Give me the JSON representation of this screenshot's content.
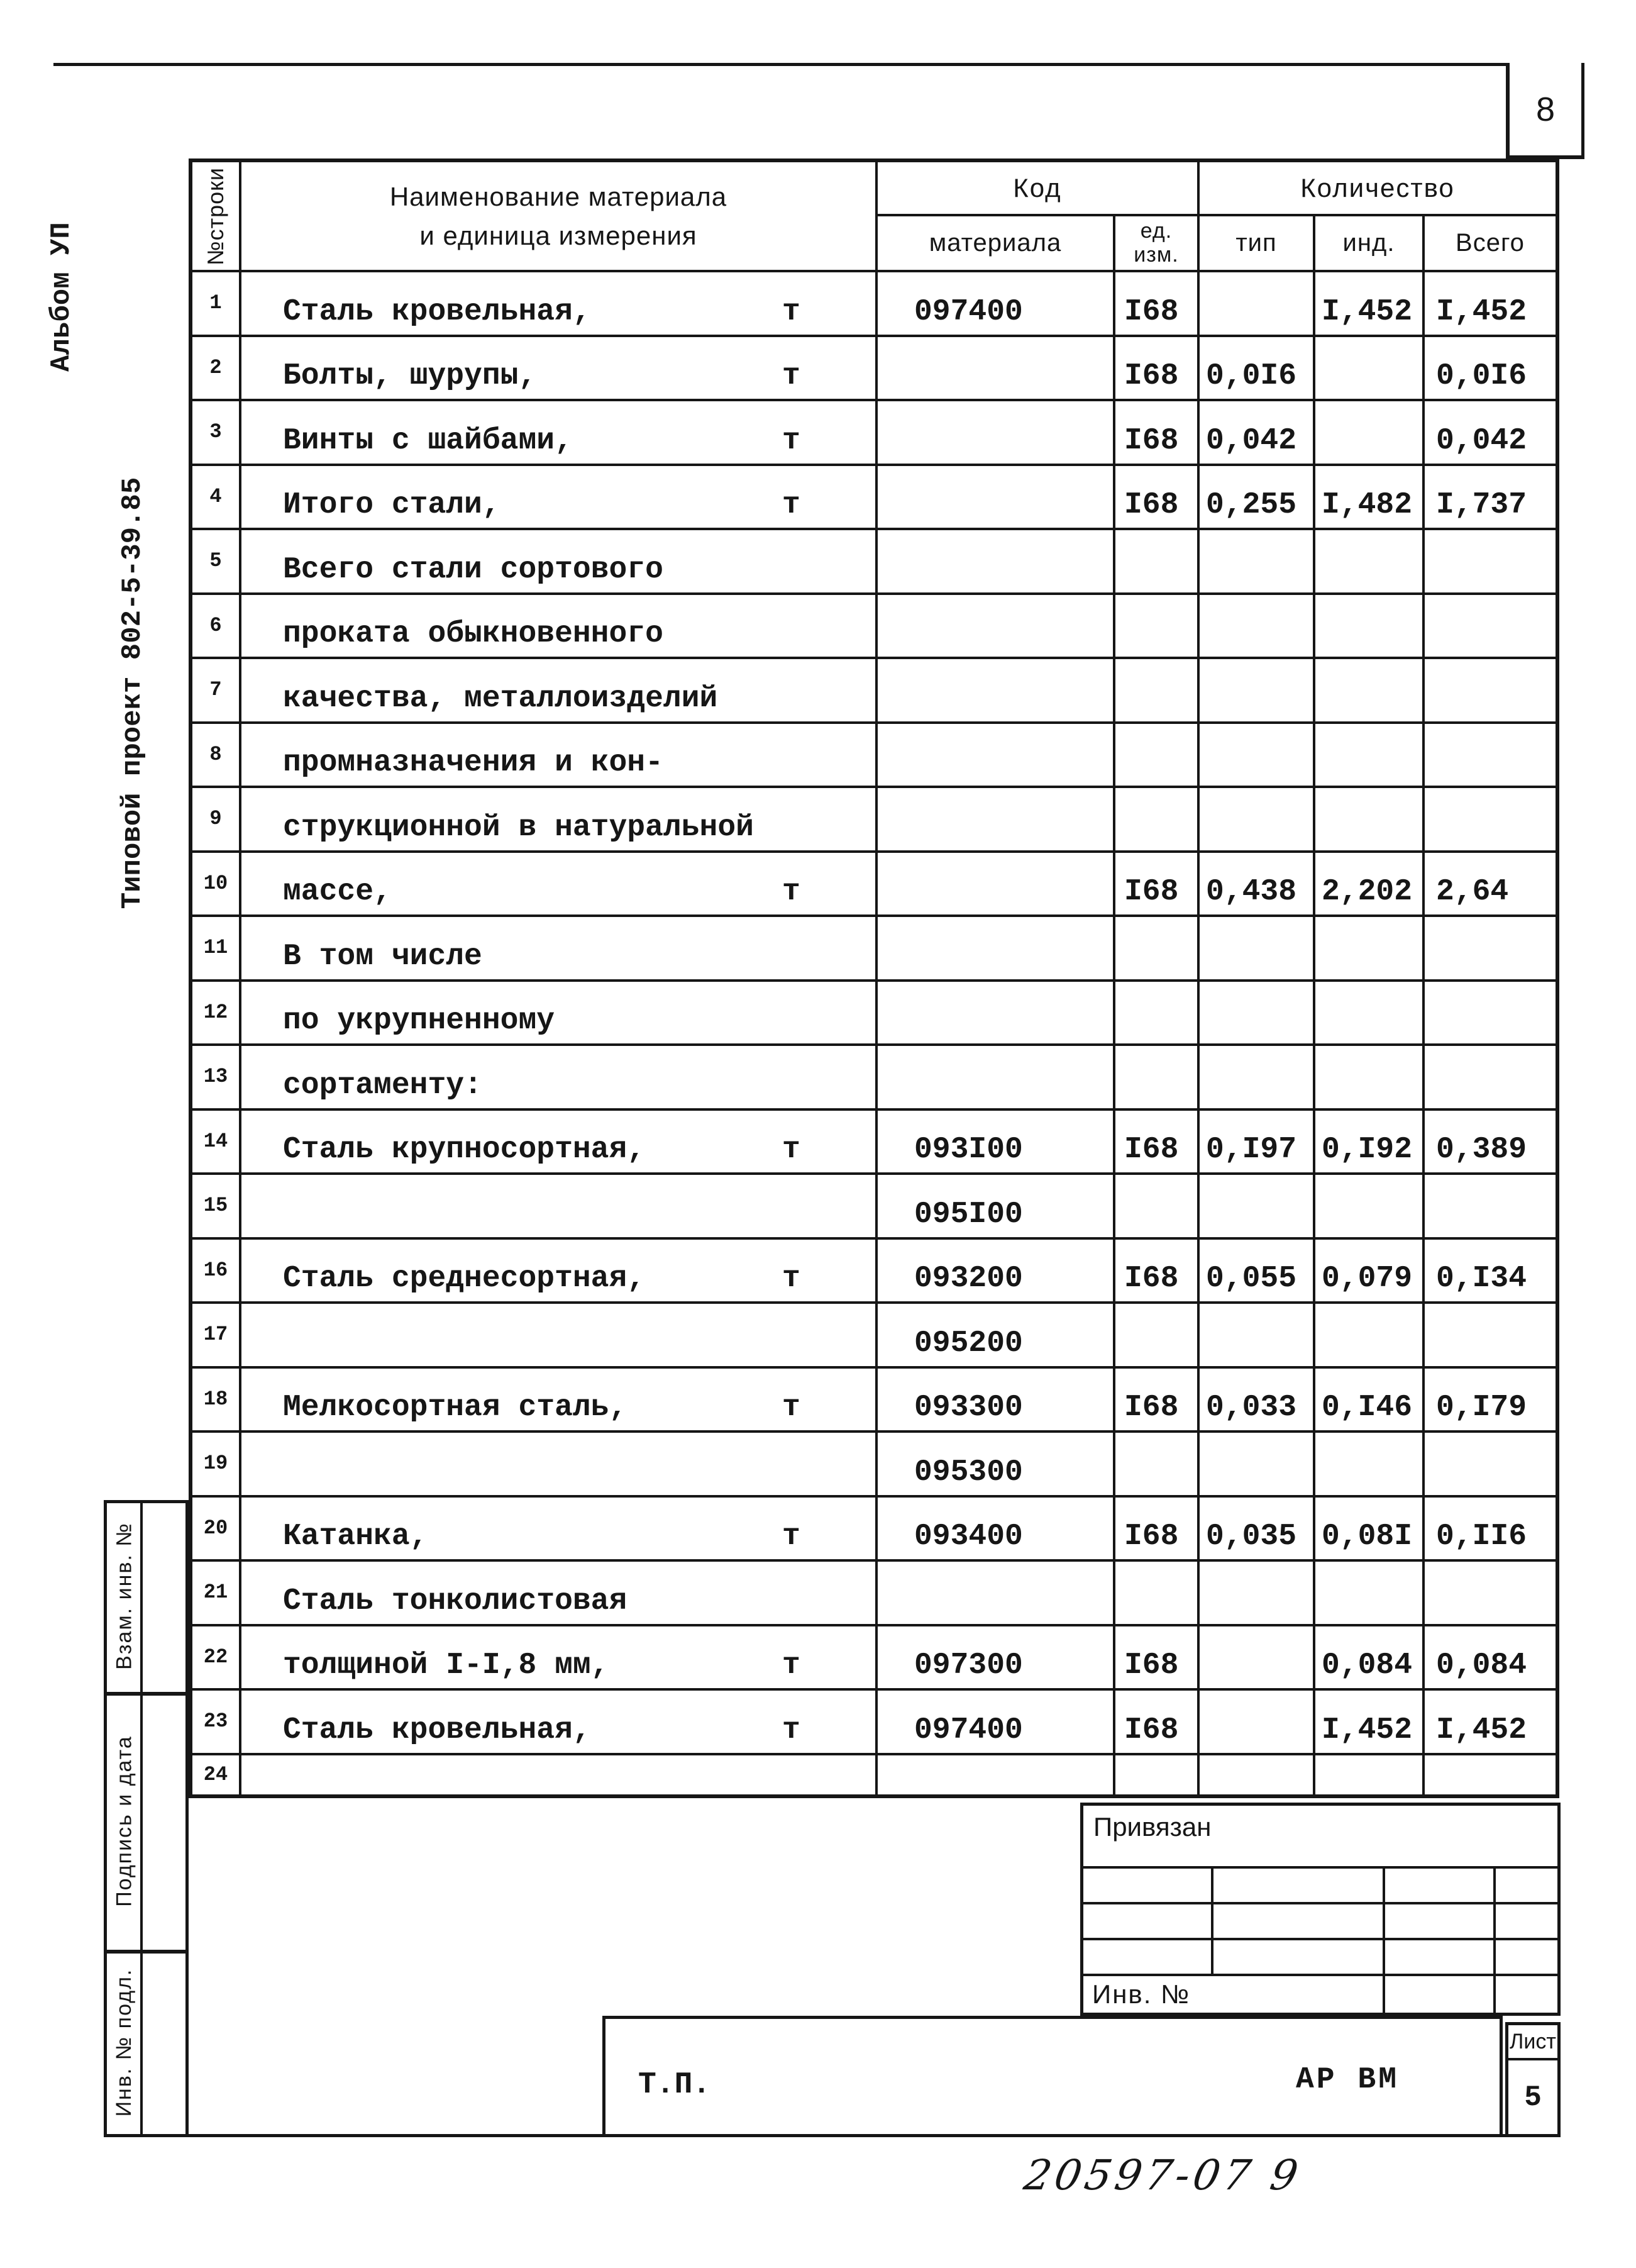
{
  "colors": {
    "ink": "#161616",
    "paper": "#ffffff"
  },
  "page": {
    "number": "8"
  },
  "margins": {
    "album": "Альбом УП",
    "project": "Типовой проект 802-5-39.85",
    "stamp_labels": [
      "Взам. инв. №",
      "Подпись и дата",
      "Инв. № подл."
    ]
  },
  "table": {
    "header": {
      "row_no": "№строки",
      "name_line1": "Наименование материала",
      "name_line2": "и единица измерения",
      "code_group": "Код",
      "code_sub": "материала",
      "unit_sub1": "ед.",
      "unit_sub2": "изм.",
      "qty_group": "Количество",
      "qty_type": "тип",
      "qty_ind": "инд.",
      "qty_total": "Всего"
    },
    "rows": [
      {
        "no": "1",
        "name": "Сталь кровельная,",
        "unit": "т",
        "code": "097400",
        "ed": "I68",
        "tip": "",
        "ind": "I,452",
        "total": "I,452"
      },
      {
        "no": "2",
        "name": "Болты, шурупы,",
        "unit": "т",
        "code": "",
        "ed": "I68",
        "tip": "0,0I6",
        "ind": "",
        "total": "0,0I6"
      },
      {
        "no": "3",
        "name": "Винты с шайбами,",
        "unit": "т",
        "code": "",
        "ed": "I68",
        "tip": "0,042",
        "ind": "",
        "total": "0,042"
      },
      {
        "no": "4",
        "name": "Итого стали,",
        "unit": "т",
        "code": "",
        "ed": "I68",
        "tip": "0,255",
        "ind": "I,482",
        "total": "I,737"
      },
      {
        "no": "5",
        "name": "Всего стали сортового",
        "unit": "",
        "code": "",
        "ed": "",
        "tip": "",
        "ind": "",
        "total": ""
      },
      {
        "no": "6",
        "name": "проката обыкновенного",
        "unit": "",
        "code": "",
        "ed": "",
        "tip": "",
        "ind": "",
        "total": ""
      },
      {
        "no": "7",
        "name": "качества, металлоизделий",
        "unit": "",
        "code": "",
        "ed": "",
        "tip": "",
        "ind": "",
        "total": ""
      },
      {
        "no": "8",
        "name": "промназначения и кон-",
        "unit": "",
        "code": "",
        "ed": "",
        "tip": "",
        "ind": "",
        "total": ""
      },
      {
        "no": "9",
        "name": "струкционной в натуральной",
        "unit": "",
        "code": "",
        "ed": "",
        "tip": "",
        "ind": "",
        "total": ""
      },
      {
        "no": "10",
        "name": "массе,",
        "unit": "т",
        "code": "",
        "ed": "I68",
        "tip": "0,438",
        "ind": "2,202",
        "total": "2,64"
      },
      {
        "no": "11",
        "name": "В том числе",
        "unit": "",
        "code": "",
        "ed": "",
        "tip": "",
        "ind": "",
        "total": ""
      },
      {
        "no": "12",
        "name": "по укрупненному",
        "unit": "",
        "code": "",
        "ed": "",
        "tip": "",
        "ind": "",
        "total": ""
      },
      {
        "no": "13",
        "name": "сортаменту:",
        "unit": "",
        "code": "",
        "ed": "",
        "tip": "",
        "ind": "",
        "total": ""
      },
      {
        "no": "14",
        "name": "Сталь крупносортная,",
        "unit": "т",
        "code": "093I00",
        "ed": "I68",
        "tip": "0,I97",
        "ind": "0,I92",
        "total": "0,389"
      },
      {
        "no": "15",
        "name": "",
        "unit": "",
        "code": "095I00",
        "ed": "",
        "tip": "",
        "ind": "",
        "total": ""
      },
      {
        "no": "16",
        "name": "Сталь среднесортная,",
        "unit": "т",
        "code": "093200",
        "ed": "I68",
        "tip": "0,055",
        "ind": "0,079",
        "total": "0,I34"
      },
      {
        "no": "17",
        "name": "",
        "unit": "",
        "code": "095200",
        "ed": "",
        "tip": "",
        "ind": "",
        "total": ""
      },
      {
        "no": "18",
        "name": "Мелкосортная сталь,",
        "unit": "т",
        "code": "093300",
        "ed": "I68",
        "tip": "0,033",
        "ind": "0,I46",
        "total": "0,I79"
      },
      {
        "no": "19",
        "name": "",
        "unit": "",
        "code": "095300",
        "ed": "",
        "tip": "",
        "ind": "",
        "total": ""
      },
      {
        "no": "20",
        "name": "Катанка,",
        "unit": "т",
        "code": "093400",
        "ed": "I68",
        "tip": "0,035",
        "ind": "0,08I",
        "total": "0,II6"
      },
      {
        "no": "21",
        "name": "Сталь тонколистовая",
        "unit": "",
        "code": "",
        "ed": "",
        "tip": "",
        "ind": "",
        "total": ""
      },
      {
        "no": "22",
        "name": "толщиной I-I,8 мм,",
        "unit": "т",
        "code": "097300",
        "ed": "I68",
        "tip": "",
        "ind": "0,084",
        "total": "0,084"
      },
      {
        "no": "23",
        "name": "Сталь кровельная,",
        "unit": "т",
        "code": "097400",
        "ed": "I68",
        "tip": "",
        "ind": "I,452",
        "total": "I,452"
      },
      {
        "no": "24",
        "name": "",
        "unit": "",
        "code": "",
        "ed": "",
        "tip": "",
        "ind": "",
        "total": ""
      }
    ]
  },
  "title_block": {
    "linked_label": "Привязан",
    "inventory_label": "Инв. №"
  },
  "footer": {
    "doc_type": "Т.П.",
    "doc_code": "АР ВМ",
    "sheet_label": "Лист",
    "sheet_number": "5",
    "handwritten": "20597-07  9"
  }
}
